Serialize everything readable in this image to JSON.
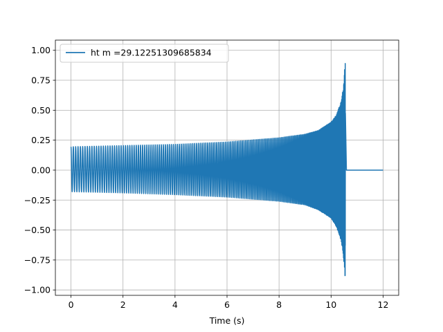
{
  "chart_data": {
    "type": "line",
    "title": "",
    "xlabel": "Time (s)",
    "ylabel": "",
    "xlim": [
      -0.6,
      12.6
    ],
    "ylim": [
      -1.045,
      1.085
    ],
    "grid": true,
    "legend_position": "top-left",
    "x_ticks": [
      "0",
      "2",
      "4",
      "6",
      "8",
      "10",
      "12"
    ],
    "x_tick_values": [
      0,
      2,
      4,
      6,
      8,
      10,
      12
    ],
    "y_ticks": [
      "1.00",
      "0.75",
      "0.50",
      "0.25",
      "0.00",
      "−0.25",
      "−0.50",
      "−0.75",
      "−1.00"
    ],
    "y_tick_values": [
      1.0,
      0.75,
      0.5,
      0.25,
      0.0,
      -0.25,
      -0.5,
      -0.75,
      -1.0
    ],
    "series": [
      {
        "name": "ht m =29.12251309685834",
        "color": "#1f77b4",
        "description_points": {
          "x": [
            0,
            2,
            4,
            6,
            8,
            9,
            9.5,
            10,
            10.2,
            10.4,
            10.5,
            10.55,
            10.6,
            12
          ],
          "upper_envelope": [
            0.195,
            0.205,
            0.215,
            0.235,
            0.27,
            0.3,
            0.33,
            0.4,
            0.46,
            0.58,
            0.75,
            1.0,
            0.0,
            0.0
          ],
          "lower_envelope": [
            -0.18,
            -0.19,
            -0.205,
            -0.225,
            -0.26,
            -0.29,
            -0.33,
            -0.4,
            -0.47,
            -0.6,
            -0.78,
            -0.94,
            0.0,
            0.0
          ]
        },
        "merger_time": 10.55,
        "end_time": 12
      }
    ]
  }
}
